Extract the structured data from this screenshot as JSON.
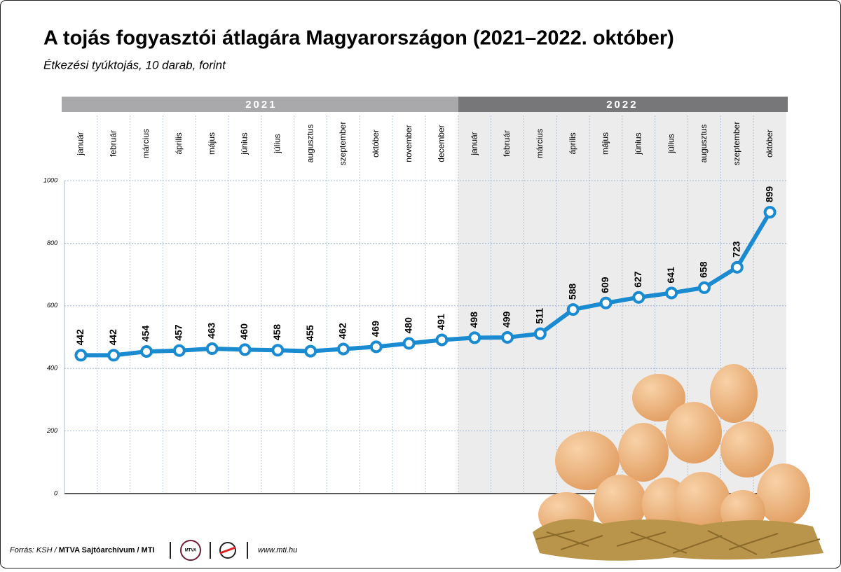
{
  "chart_data": {
    "type": "line",
    "title": "A tojás fogyasztói átlagára Magyarországon (2021–2022. október)",
    "subtitle": "Étkezési tyúktojás, 10 darab, forint",
    "groups": [
      {
        "name": "2021",
        "band_color": "#a9a9ab",
        "background": "#ffffff",
        "categories": [
          "január",
          "február",
          "március",
          "április",
          "május",
          "június",
          "július",
          "augusztus",
          "szeptember",
          "október",
          "november",
          "december"
        ]
      },
      {
        "name": "2022",
        "band_color": "#77777a",
        "background": "#ececec",
        "categories": [
          "január",
          "február",
          "március",
          "április",
          "május",
          "június",
          "július",
          "augusztus",
          "szeptember",
          "október"
        ]
      }
    ],
    "values": [
      442,
      442,
      454,
      457,
      463,
      460,
      458,
      455,
      462,
      469,
      480,
      491,
      498,
      499,
      511,
      588,
      609,
      627,
      641,
      658,
      723,
      899
    ],
    "color": "#1a8bd0",
    "ylim": [
      0,
      1000
    ],
    "yticks": [
      0,
      200,
      400,
      600,
      800,
      1000
    ],
    "grid": true
  },
  "footer": {
    "source_prefix": "Forrás: KSH /",
    "source_bold": "MTVA Sajtóarchívum / MTI",
    "logo": "MTVA",
    "url": "www.mti.hu"
  }
}
